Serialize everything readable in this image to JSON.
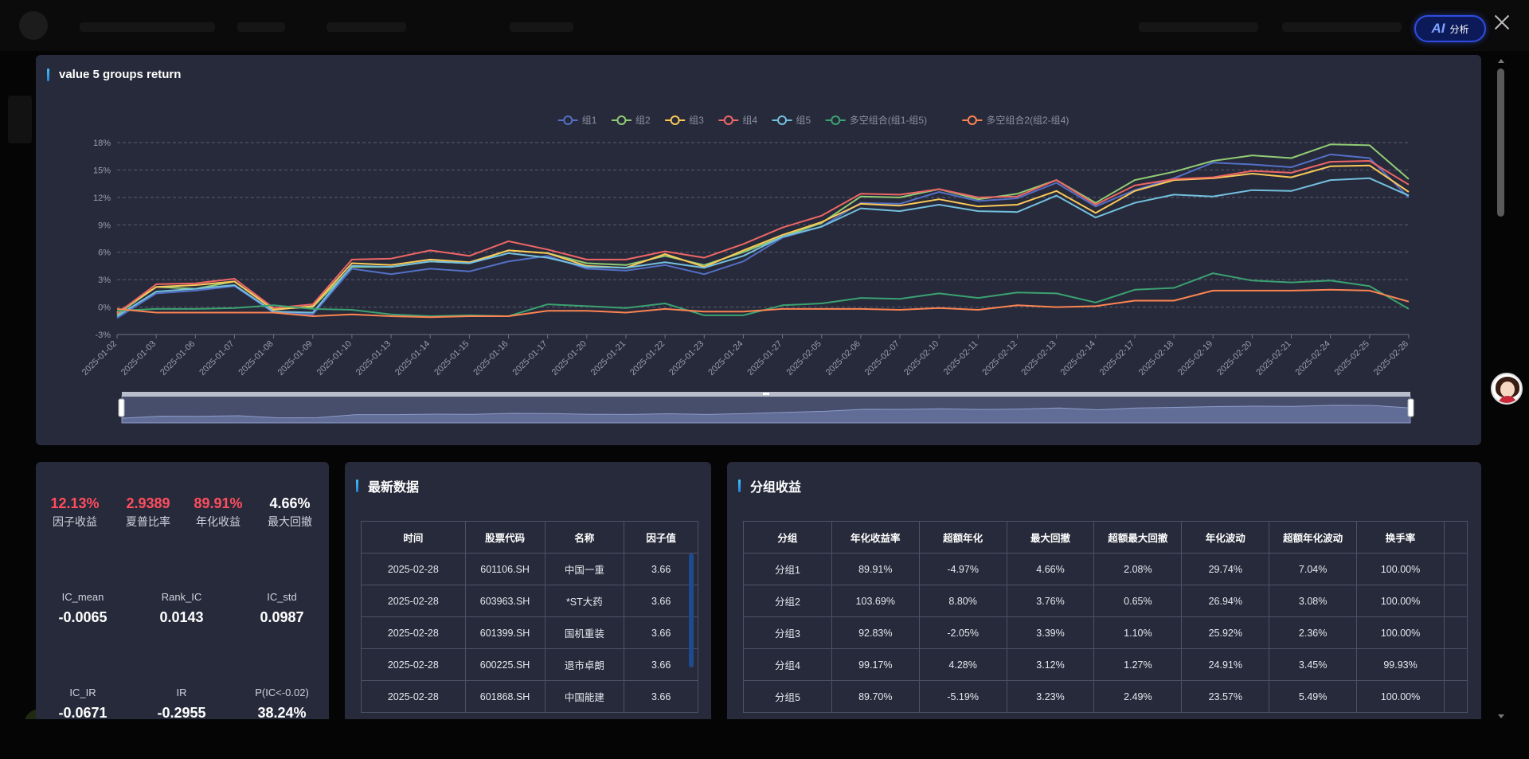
{
  "ai_button": {
    "logo": "AI",
    "label": "分析"
  },
  "chart_panel": {
    "title": "value 5 groups return"
  },
  "chart_data": {
    "type": "line",
    "x": [
      "2025-01-02",
      "2025-01-03",
      "2025-01-06",
      "2025-01-07",
      "2025-01-08",
      "2025-01-09",
      "2025-01-10",
      "2025-01-13",
      "2025-01-14",
      "2025-01-15",
      "2025-01-16",
      "2025-01-17",
      "2025-01-20",
      "2025-01-21",
      "2025-01-22",
      "2025-01-23",
      "2025-01-24",
      "2025-01-27",
      "2025-02-05",
      "2025-02-06",
      "2025-02-07",
      "2025-02-10",
      "2025-02-11",
      "2025-02-12",
      "2025-02-13",
      "2025-02-14",
      "2025-02-17",
      "2025-02-18",
      "2025-02-19",
      "2025-02-20",
      "2025-02-21",
      "2025-02-24",
      "2025-02-25",
      "2025-02-26"
    ],
    "xlabels": [
      "2025-01-02",
      "2025-01-03",
      "2025-01-06",
      "2025-01-07",
      "2025-01-08",
      "2025-01-09",
      "2025-01-10",
      "2025-01-13",
      "2025-01-14",
      "2025-01-15",
      "2025-01-16",
      "2025-01-17",
      "2025-01-20",
      "2025-01-21",
      "2025-01-22",
      "2025-01-23",
      "2025-01-24",
      "2025-01-27",
      "2025-02-05",
      "2025-02-06",
      "2025-02-07",
      "2025-02-10",
      "2025-02-11",
      "2025-02-12",
      "2025-02-13",
      "2025-02-14",
      "2025-02-17",
      "2025-02-18",
      "2025-02-19",
      "2025-02-20",
      "2025-02-21",
      "2025-02-24",
      "2025-02-25",
      "2025-02-26"
    ],
    "yticks": [
      "-3%",
      "0%",
      "3%",
      "6%",
      "9%",
      "12%",
      "15%",
      "18%"
    ],
    "ylim": [
      -3,
      18
    ],
    "grid": true,
    "legend_position": "top-center",
    "series": [
      {
        "name": "组1",
        "color": "#5470c6",
        "values": [
          -1.2,
          1.5,
          1.8,
          2.3,
          -0.6,
          -0.8,
          4.2,
          3.6,
          4.2,
          3.9,
          5.0,
          5.6,
          4.2,
          4.0,
          4.6,
          3.6,
          5.0,
          7.6,
          8.8,
          11.4,
          11.3,
          12.6,
          11.6,
          11.9,
          13.6,
          11.0,
          12.8,
          14.1,
          15.8,
          15.6,
          15.3,
          16.7,
          16.3,
          12.0
        ]
      },
      {
        "name": "组2",
        "color": "#91cc75",
        "values": [
          -0.8,
          2.2,
          2.0,
          2.8,
          -0.2,
          0.0,
          4.4,
          4.4,
          5.0,
          4.8,
          6.2,
          5.9,
          4.8,
          4.6,
          5.6,
          4.6,
          6.0,
          7.7,
          9.2,
          12.1,
          12.0,
          12.9,
          11.8,
          12.4,
          13.9,
          11.4,
          13.9,
          14.8,
          16.0,
          16.6,
          16.3,
          17.8,
          17.7,
          14.0
        ]
      },
      {
        "name": "组3",
        "color": "#fac858",
        "values": [
          -0.6,
          2.2,
          2.4,
          2.8,
          -0.3,
          0.1,
          4.8,
          4.6,
          5.2,
          4.9,
          6.2,
          5.9,
          4.5,
          4.3,
          5.8,
          4.4,
          6.2,
          7.9,
          9.3,
          11.3,
          11.1,
          11.8,
          11.0,
          11.2,
          12.7,
          10.3,
          12.7,
          13.9,
          14.1,
          14.6,
          14.2,
          15.4,
          15.5,
          12.6
        ]
      },
      {
        "name": "组4",
        "color": "#ee6666",
        "values": [
          -0.7,
          2.5,
          2.6,
          3.1,
          -0.1,
          0.3,
          5.2,
          5.3,
          6.2,
          5.6,
          7.2,
          6.3,
          5.2,
          5.2,
          6.1,
          5.4,
          6.9,
          8.7,
          10.0,
          12.4,
          12.3,
          12.9,
          12.0,
          12.1,
          13.9,
          11.2,
          13.3,
          14.0,
          14.2,
          14.9,
          14.7,
          15.9,
          16.0,
          13.4
        ]
      },
      {
        "name": "组5",
        "color": "#73c0de",
        "values": [
          -1.0,
          1.7,
          2.0,
          2.4,
          -0.5,
          -0.6,
          4.5,
          4.4,
          5.0,
          4.8,
          5.9,
          5.4,
          4.4,
          4.3,
          4.9,
          4.3,
          5.6,
          7.7,
          8.8,
          10.8,
          10.5,
          11.2,
          10.5,
          10.4,
          12.2,
          9.8,
          11.4,
          12.3,
          12.1,
          12.8,
          12.7,
          13.9,
          14.1,
          12.2
        ]
      },
      {
        "name": "多空组合(组1-组5)",
        "color": "#3ba272",
        "values": [
          -0.4,
          -0.2,
          -0.2,
          -0.1,
          0.2,
          -0.2,
          -0.3,
          -0.8,
          -1.0,
          -0.9,
          -1.0,
          0.3,
          0.1,
          -0.1,
          0.4,
          -0.9,
          -0.9,
          0.2,
          0.4,
          1.0,
          0.9,
          1.5,
          1.0,
          1.6,
          1.5,
          0.5,
          1.9,
          2.1,
          3.7,
          2.9,
          2.7,
          2.9,
          2.3,
          -0.2
        ]
      },
      {
        "name": "多空组合2(组2-组4)",
        "color": "#fc8452",
        "values": [
          -0.2,
          -0.6,
          -0.6,
          -0.6,
          -0.6,
          -1.0,
          -0.8,
          -1.0,
          -1.1,
          -1.0,
          -1.0,
          -0.4,
          -0.4,
          -0.6,
          -0.2,
          -0.5,
          -0.5,
          -0.2,
          -0.2,
          -0.2,
          -0.3,
          -0.1,
          -0.3,
          0.2,
          0.0,
          0.1,
          0.7,
          0.7,
          1.8,
          1.8,
          1.8,
          1.9,
          1.8,
          0.6
        ]
      }
    ]
  },
  "metrics": [
    {
      "value": "12.13%",
      "label": "因子收益",
      "color": "red"
    },
    {
      "value": "2.9389",
      "label": "夏普比率",
      "color": "red"
    },
    {
      "value": "89.91%",
      "label": "年化收益",
      "color": "red"
    },
    {
      "value": "4.66%",
      "label": "最大回撤",
      "color": "white"
    }
  ],
  "stats": [
    {
      "label": "IC_mean",
      "value": "-0.0065"
    },
    {
      "label": "Rank_IC",
      "value": "0.0143"
    },
    {
      "label": "IC_std",
      "value": "0.0987"
    },
    {
      "label": "IC_IR",
      "value": "-0.0671"
    },
    {
      "label": "IR",
      "value": "-0.2955"
    },
    {
      "label": "P(IC<-0.02)",
      "value": "38.24%"
    }
  ],
  "latest": {
    "title": "最新数据",
    "headers": [
      "时间",
      "股票代码",
      "名称",
      "因子值"
    ],
    "rows": [
      [
        "2025-02-28",
        "601106.SH",
        "中国一重",
        "3.66"
      ],
      [
        "2025-02-28",
        "603963.SH",
        "*ST大药",
        "3.66"
      ],
      [
        "2025-02-28",
        "601399.SH",
        "国机重装",
        "3.66"
      ],
      [
        "2025-02-28",
        "600225.SH",
        "退市卓朗",
        "3.66"
      ],
      [
        "2025-02-28",
        "601868.SH",
        "中国能建",
        "3.66"
      ]
    ]
  },
  "groups": {
    "title": "分组收益",
    "headers": [
      "分组",
      "年化收益率",
      "超额年化",
      "最大回撤",
      "超额最大回撤",
      "年化波动",
      "超额年化波动",
      "换手率"
    ],
    "rows": [
      [
        "分组1",
        "89.91%",
        "-4.97%",
        "4.66%",
        "2.08%",
        "29.74%",
        "7.04%",
        "100.00%"
      ],
      [
        "分组2",
        "103.69%",
        "8.80%",
        "3.76%",
        "0.65%",
        "26.94%",
        "3.08%",
        "100.00%"
      ],
      [
        "分组3",
        "92.83%",
        "-2.05%",
        "3.39%",
        "1.10%",
        "25.92%",
        "2.36%",
        "100.00%"
      ],
      [
        "分组4",
        "99.17%",
        "4.28%",
        "3.12%",
        "1.27%",
        "24.91%",
        "3.45%",
        "99.93%"
      ],
      [
        "分组5",
        "89.70%",
        "-5.19%",
        "3.23%",
        "2.49%",
        "23.57%",
        "5.49%",
        "100.00%"
      ]
    ]
  }
}
